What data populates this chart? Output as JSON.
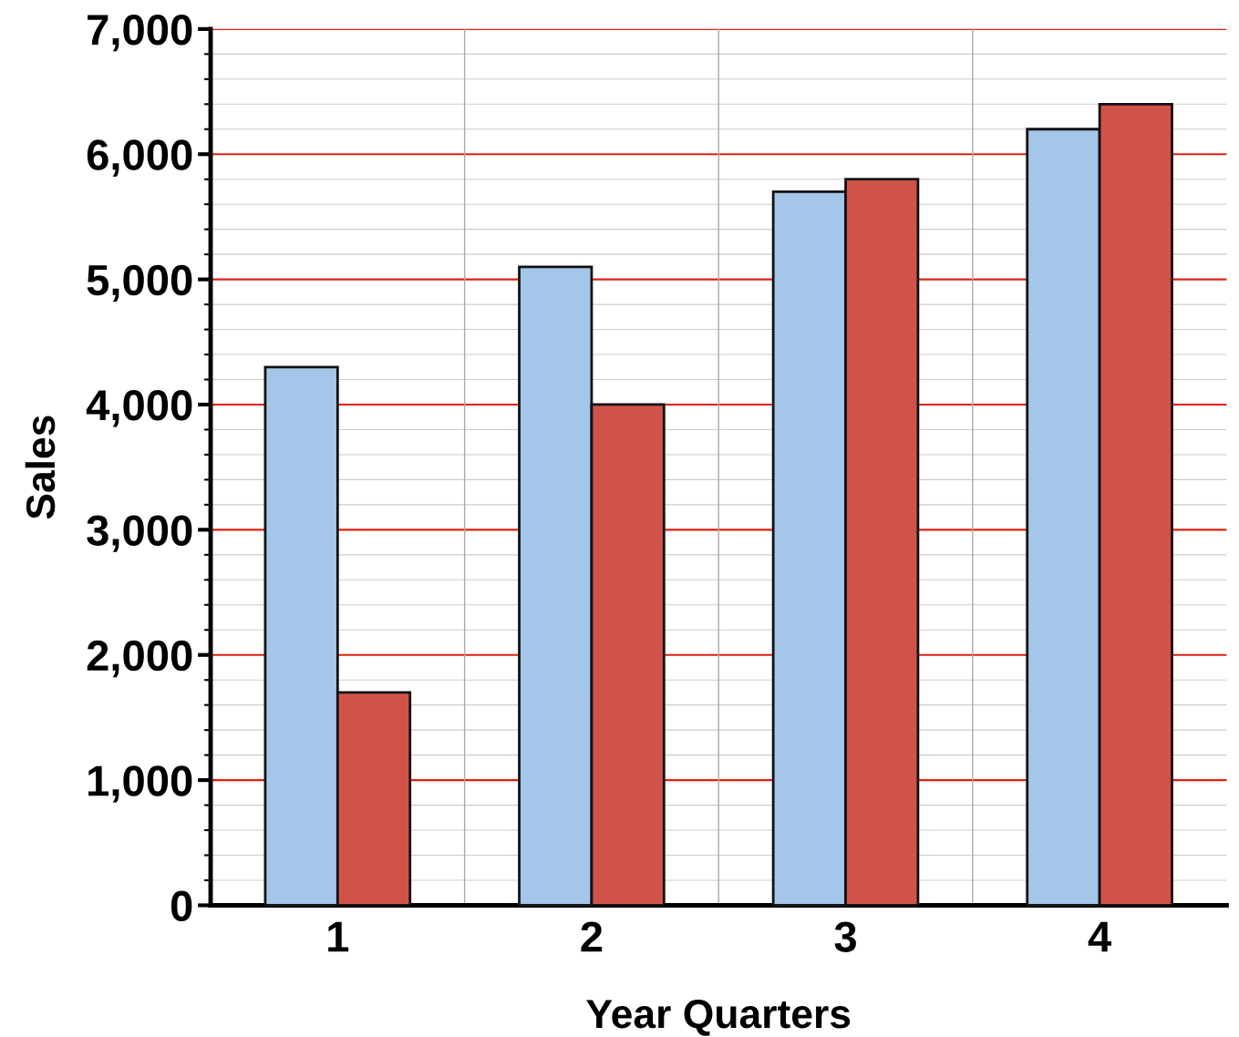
{
  "chart_data": {
    "type": "bar",
    "xlabel": "Year Quarters",
    "ylabel": "Sales",
    "categories": [
      "1",
      "2",
      "3",
      "4"
    ],
    "series": [
      {
        "color": "#a4c6e8",
        "values": [
          4300,
          5100,
          5700,
          6200
        ]
      },
      {
        "color": "#d0534a",
        "values": [
          1700,
          4000,
          5800,
          6400
        ]
      }
    ],
    "ylim": [
      0,
      7000
    ],
    "yticks": [
      {
        "value": 0,
        "label": "0"
      },
      {
        "value": 1000,
        "label": "1,000"
      },
      {
        "value": 2000,
        "label": "2,000"
      },
      {
        "value": 3000,
        "label": "3,000"
      },
      {
        "value": 4000,
        "label": "4,000"
      },
      {
        "value": 5000,
        "label": "5,000"
      },
      {
        "value": 6000,
        "label": "6,000"
      },
      {
        "value": 7000,
        "label": "7,000"
      }
    ],
    "grid": true
  }
}
